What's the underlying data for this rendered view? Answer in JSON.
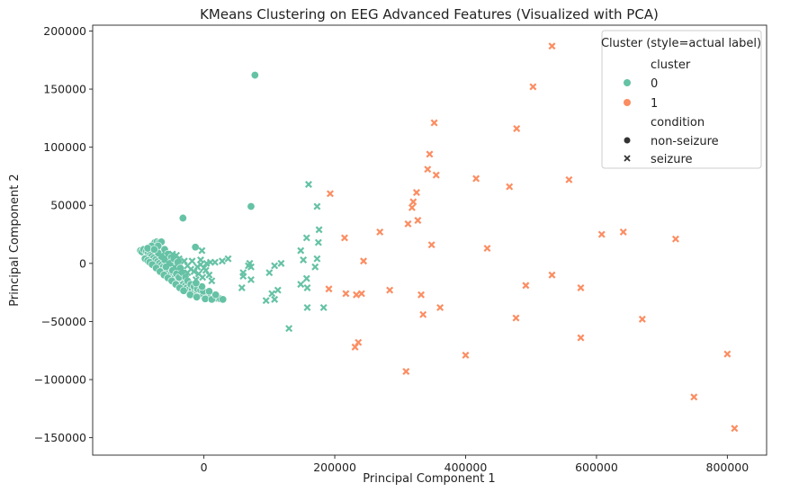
{
  "chart_data": {
    "type": "scatter",
    "title": "KMeans Clustering on EEG Advanced Features (Visualized with PCA)",
    "xlabel": "Principal Component 1",
    "ylabel": "Principal Component 2",
    "xlim": [
      -170000,
      860000
    ],
    "ylim": [
      -165000,
      205000
    ],
    "xticks": [
      0,
      200000,
      400000,
      600000,
      800000
    ],
    "yticks": [
      -150000,
      -100000,
      -50000,
      0,
      50000,
      100000,
      150000,
      200000
    ],
    "xtick_labels": [
      "0",
      "200000",
      "400000",
      "600000",
      "800000"
    ],
    "ytick_labels": [
      "−150000",
      "−100000",
      "−50000",
      "0",
      "50000",
      "100000",
      "150000",
      "200000"
    ],
    "grid": false,
    "legend": {
      "placement": "top-right",
      "title": "Cluster (style=actual label)",
      "hue_title": "cluster",
      "style_title": "condition",
      "hue_entries": [
        {
          "label": "0",
          "color": "#66c2a5"
        },
        {
          "label": "1",
          "color": "#fc8d62"
        }
      ],
      "style_entries": [
        {
          "label": "non-seizure",
          "marker": "circle"
        },
        {
          "label": "seizure",
          "marker": "x"
        }
      ]
    },
    "colors": {
      "cluster_0": "#66c2a5",
      "cluster_1": "#fc8d62"
    },
    "series": [
      {
        "cluster": "0",
        "condition": "non-seizure",
        "marker": "circle",
        "points": [
          [
            78000,
            162000
          ],
          [
            -32000,
            39000
          ],
          [
            -13000,
            14000
          ],
          [
            72000,
            49000
          ],
          [
            -97000,
            11000
          ],
          [
            -93000,
            9000
          ],
          [
            -90000,
            8500
          ],
          [
            -87000,
            7000
          ],
          [
            -84000,
            5000
          ],
          [
            -81000,
            3500
          ],
          [
            -78000,
            2000
          ],
          [
            -75000,
            500
          ],
          [
            -72000,
            -1000
          ],
          [
            -69000,
            -2500
          ],
          [
            -66000,
            -4000
          ],
          [
            -63000,
            -5500
          ],
          [
            -60000,
            -7000
          ],
          [
            -57000,
            -8500
          ],
          [
            -54000,
            -10000
          ],
          [
            -51000,
            -11500
          ],
          [
            -48000,
            -13000
          ],
          [
            -45000,
            -14500
          ],
          [
            -42000,
            -16000
          ],
          [
            -39000,
            -17500
          ],
          [
            -36000,
            -19000
          ],
          [
            -33000,
            -20500
          ],
          [
            -30000,
            -22000
          ],
          [
            -27000,
            -23000
          ],
          [
            -24000,
            -24000
          ],
          [
            -20000,
            -25000
          ],
          [
            -16000,
            -25500
          ],
          [
            -12000,
            -26500
          ],
          [
            -8000,
            -27000
          ],
          [
            -4000,
            -27500
          ],
          [
            0,
            -28000
          ],
          [
            5000,
            -28500
          ],
          [
            10000,
            -29000
          ],
          [
            15000,
            -29500
          ],
          [
            20000,
            -30000
          ],
          [
            25000,
            -30500
          ],
          [
            29000,
            -31000
          ],
          [
            -95000,
            10000
          ],
          [
            -92000,
            12000
          ],
          [
            -88000,
            10500
          ],
          [
            -85000,
            9000
          ],
          [
            -82000,
            7500
          ],
          [
            -80000,
            6000
          ],
          [
            -77000,
            4500
          ],
          [
            -74000,
            3000
          ],
          [
            -71000,
            1500
          ],
          [
            -68000,
            0
          ],
          [
            -65000,
            -1500
          ],
          [
            -62000,
            -3000
          ],
          [
            -59000,
            -4500
          ],
          [
            -56000,
            -6000
          ],
          [
            -53000,
            -7500
          ],
          [
            -50000,
            -9000
          ],
          [
            -47000,
            -10500
          ],
          [
            -44000,
            -12000
          ],
          [
            -41000,
            -13500
          ],
          [
            -38000,
            -15000
          ],
          [
            -35000,
            -16500
          ],
          [
            -32000,
            -18000
          ],
          [
            -29000,
            -19500
          ],
          [
            -26000,
            -21000
          ],
          [
            -22000,
            -22000
          ],
          [
            -18000,
            -23000
          ],
          [
            -14000,
            -24000
          ],
          [
            -10000,
            -25000
          ],
          [
            -6000,
            -25500
          ],
          [
            -2000,
            -26000
          ],
          [
            -75000,
            18000
          ],
          [
            -72000,
            18500
          ],
          [
            -68000,
            18000
          ],
          [
            -65000,
            18500
          ],
          [
            -80000,
            15000
          ],
          [
            -86000,
            13000
          ],
          [
            -70000,
            15000
          ],
          [
            -60000,
            12000
          ],
          [
            -55000,
            8000
          ],
          [
            -50000,
            5000
          ],
          [
            -45000,
            2000
          ],
          [
            -40000,
            -2000
          ],
          [
            -35000,
            -6000
          ],
          [
            -30000,
            -9000
          ],
          [
            -60000,
            3000
          ],
          [
            -65000,
            6000
          ],
          [
            -55000,
            -2000
          ],
          [
            -48000,
            -6000
          ],
          [
            -42000,
            -9000
          ],
          [
            -38000,
            -12000
          ],
          [
            -52000,
            0
          ],
          [
            -58000,
            -3000
          ],
          [
            -70000,
            9000
          ],
          [
            -76000,
            12000
          ],
          [
            -46000,
            4000
          ],
          [
            -40000,
            1000
          ],
          [
            -36000,
            -4000
          ],
          [
            -33000,
            -8000
          ],
          [
            -28000,
            -12000
          ],
          [
            -25000,
            -15000
          ],
          [
            -20000,
            -18000
          ],
          [
            -15000,
            -20000
          ],
          [
            -10000,
            -22000
          ],
          [
            -5000,
            -23000
          ],
          [
            -1000,
            -24000
          ],
          [
            -90000,
            4000
          ],
          [
            -86000,
            2500
          ],
          [
            -83000,
            1000
          ],
          [
            -79000,
            -1000
          ],
          [
            -73000,
            -4000
          ],
          [
            -67000,
            -7000
          ],
          [
            -61000,
            -10000
          ],
          [
            -55000,
            -12500
          ],
          [
            -49000,
            -15000
          ],
          [
            -43000,
            -18000
          ],
          [
            -37000,
            -21000
          ],
          [
            -31000,
            -23500
          ],
          [
            -21000,
            -27000
          ],
          [
            -11000,
            -29000
          ],
          [
            2000,
            -30500
          ],
          [
            12000,
            -31000
          ],
          [
            18000,
            -27000
          ],
          [
            8000,
            -24000
          ],
          [
            -3000,
            -20000
          ],
          [
            -12000,
            -17000
          ]
        ]
      },
      {
        "cluster": "0",
        "condition": "seizure",
        "marker": "x",
        "points": [
          [
            160000,
            68000
          ],
          [
            173000,
            49000
          ],
          [
            176000,
            29000
          ],
          [
            175000,
            18000
          ],
          [
            157000,
            22000
          ],
          [
            148000,
            11000
          ],
          [
            152000,
            3000
          ],
          [
            173000,
            4000
          ],
          [
            170000,
            -3000
          ],
          [
            157000,
            -13000
          ],
          [
            158000,
            -21000
          ],
          [
            148000,
            -18000
          ],
          [
            183000,
            -38000
          ],
          [
            158000,
            -38000
          ],
          [
            130000,
            -56000
          ],
          [
            108000,
            -31000
          ],
          [
            104000,
            -26000
          ],
          [
            95000,
            -32000
          ],
          [
            113000,
            -23000
          ],
          [
            100000,
            -8000
          ],
          [
            108000,
            -2000
          ],
          [
            118000,
            0
          ],
          [
            70000,
            0
          ],
          [
            72000,
            -3000
          ],
          [
            68000,
            -2000
          ],
          [
            60000,
            -8000
          ],
          [
            60000,
            -11000
          ],
          [
            72000,
            -14000
          ],
          [
            58000,
            -21000
          ],
          [
            37000,
            4000
          ],
          [
            28000,
            2000
          ],
          [
            17000,
            1000
          ],
          [
            10000,
            1000
          ],
          [
            4000,
            0
          ],
          [
            -3000,
            11000
          ],
          [
            -5000,
            -1000
          ],
          [
            -10000,
            -3000
          ],
          [
            -20000,
            -5000
          ],
          [
            -25000,
            -8000
          ],
          [
            -35000,
            -6000
          ],
          [
            -45000,
            -3000
          ],
          [
            -55000,
            0
          ],
          [
            -60000,
            5000
          ],
          [
            -65000,
            7000
          ],
          [
            -48000,
            8000
          ],
          [
            -42000,
            7000
          ],
          [
            -38000,
            4000
          ],
          [
            -30000,
            2000
          ],
          [
            -25000,
            -2000
          ],
          [
            -15000,
            -7000
          ],
          [
            -8000,
            -9000
          ],
          [
            -2000,
            -12000
          ],
          [
            -18000,
            2000
          ],
          [
            -28000,
            -11000
          ],
          [
            -12000,
            -14000
          ],
          [
            0,
            -4000
          ],
          [
            -5000,
            3000
          ],
          [
            3000,
            -6000
          ],
          [
            8000,
            -10000
          ],
          [
            12000,
            -15000
          ]
        ]
      },
      {
        "cluster": "1",
        "condition": "seizure",
        "marker": "x",
        "points": [
          [
            532000,
            187000
          ],
          [
            503000,
            152000
          ],
          [
            352000,
            121000
          ],
          [
            478000,
            116000
          ],
          [
            345000,
            94000
          ],
          [
            342000,
            81000
          ],
          [
            355000,
            76000
          ],
          [
            416000,
            73000
          ],
          [
            558000,
            72000
          ],
          [
            467000,
            66000
          ],
          [
            193000,
            60000
          ],
          [
            325000,
            61000
          ],
          [
            320000,
            53000
          ],
          [
            318000,
            48000
          ],
          [
            327000,
            37000
          ],
          [
            312000,
            34000
          ],
          [
            269000,
            27000
          ],
          [
            641000,
            27000
          ],
          [
            608000,
            25000
          ],
          [
            215000,
            22000
          ],
          [
            721000,
            21000
          ],
          [
            348000,
            16000
          ],
          [
            433000,
            13000
          ],
          [
            244000,
            2000
          ],
          [
            532000,
            -10000
          ],
          [
            492000,
            -19000
          ],
          [
            576000,
            -21000
          ],
          [
            191000,
            -22000
          ],
          [
            284000,
            -23000
          ],
          [
            217000,
            -26000
          ],
          [
            241000,
            -26000
          ],
          [
            233000,
            -27000
          ],
          [
            332000,
            -27000
          ],
          [
            361000,
            -38000
          ],
          [
            335000,
            -44000
          ],
          [
            477000,
            -47000
          ],
          [
            670000,
            -48000
          ],
          [
            576000,
            -64000
          ],
          [
            236000,
            -68000
          ],
          [
            231000,
            -72000
          ],
          [
            400000,
            -79000
          ],
          [
            800000,
            -78000
          ],
          [
            309000,
            -93000
          ],
          [
            749000,
            -115000
          ],
          [
            811000,
            -142000
          ]
        ]
      }
    ]
  }
}
